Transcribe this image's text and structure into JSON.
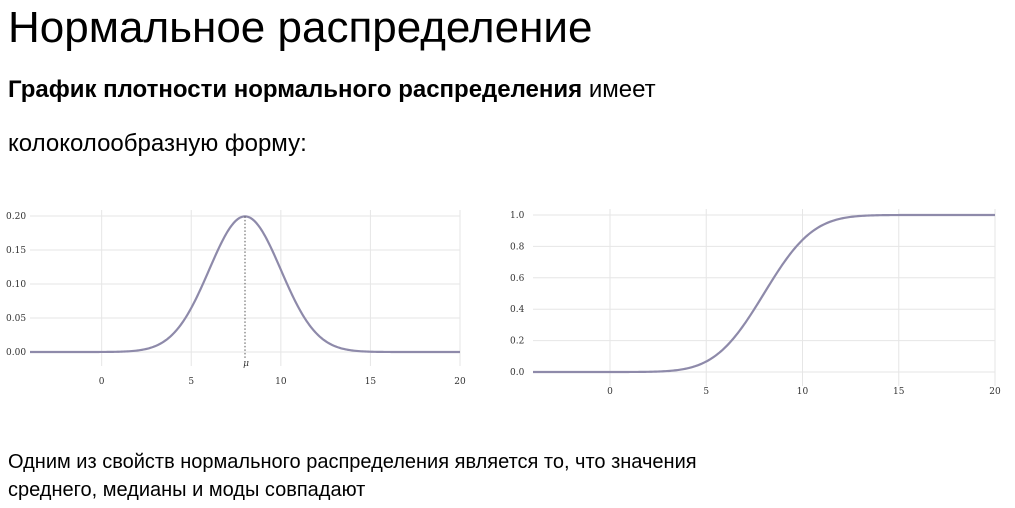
{
  "slide": {
    "title": "Нормальное распределение",
    "sub_bold": "График плотности нормального распределения",
    "sub_rest": " имеет",
    "sub_line2": "колоколообразную форму:",
    "footer_line1": "Одним из свойств нормального распределения является то, что значения",
    "footer_line2": "среднего, медианы и моды совпадают"
  },
  "chart_data": [
    {
      "type": "line",
      "title": "",
      "xlabel": "",
      "ylabel": "",
      "x_ticks": [
        "0",
        "5",
        "10",
        "15",
        "20"
      ],
      "y_ticks": [
        "0.00",
        "0.05",
        "0.10",
        "0.15",
        "0.20"
      ],
      "xlim": [
        -4,
        20
      ],
      "ylim": [
        0,
        0.2
      ],
      "grid": true,
      "series": [
        {
          "mean": 8,
          "std": 2,
          "x": [
            -4,
            2,
            4,
            5,
            6,
            7,
            8,
            9,
            10,
            11,
            12,
            14,
            20
          ],
          "y": [
            0.0,
            0.002,
            0.027,
            0.065,
            0.121,
            0.176,
            0.199,
            0.176,
            0.121,
            0.065,
            0.027,
            0.002,
            0.0
          ]
        }
      ],
      "annotations": [
        {
          "x": 8,
          "label": "μ",
          "style": "dotted-vertical"
        }
      ]
    },
    {
      "type": "line",
      "title": "",
      "xlabel": "",
      "ylabel": "",
      "x_ticks": [
        "0",
        "5",
        "10",
        "15",
        "20"
      ],
      "y_ticks": [
        "0.0",
        "0.2",
        "0.4",
        "0.6",
        "0.8",
        "1.0"
      ],
      "xlim": [
        -4,
        20
      ],
      "ylim": [
        0,
        1
      ],
      "grid": true,
      "series": [
        {
          "mean": 8,
          "std": 2,
          "x": [
            -4,
            2,
            4,
            5,
            6,
            7,
            8,
            9,
            10,
            11,
            12,
            14,
            20
          ],
          "y": [
            0.0,
            0.001,
            0.023,
            0.067,
            0.159,
            0.309,
            0.5,
            0.691,
            0.841,
            0.933,
            0.977,
            0.999,
            1.0
          ]
        }
      ]
    }
  ]
}
